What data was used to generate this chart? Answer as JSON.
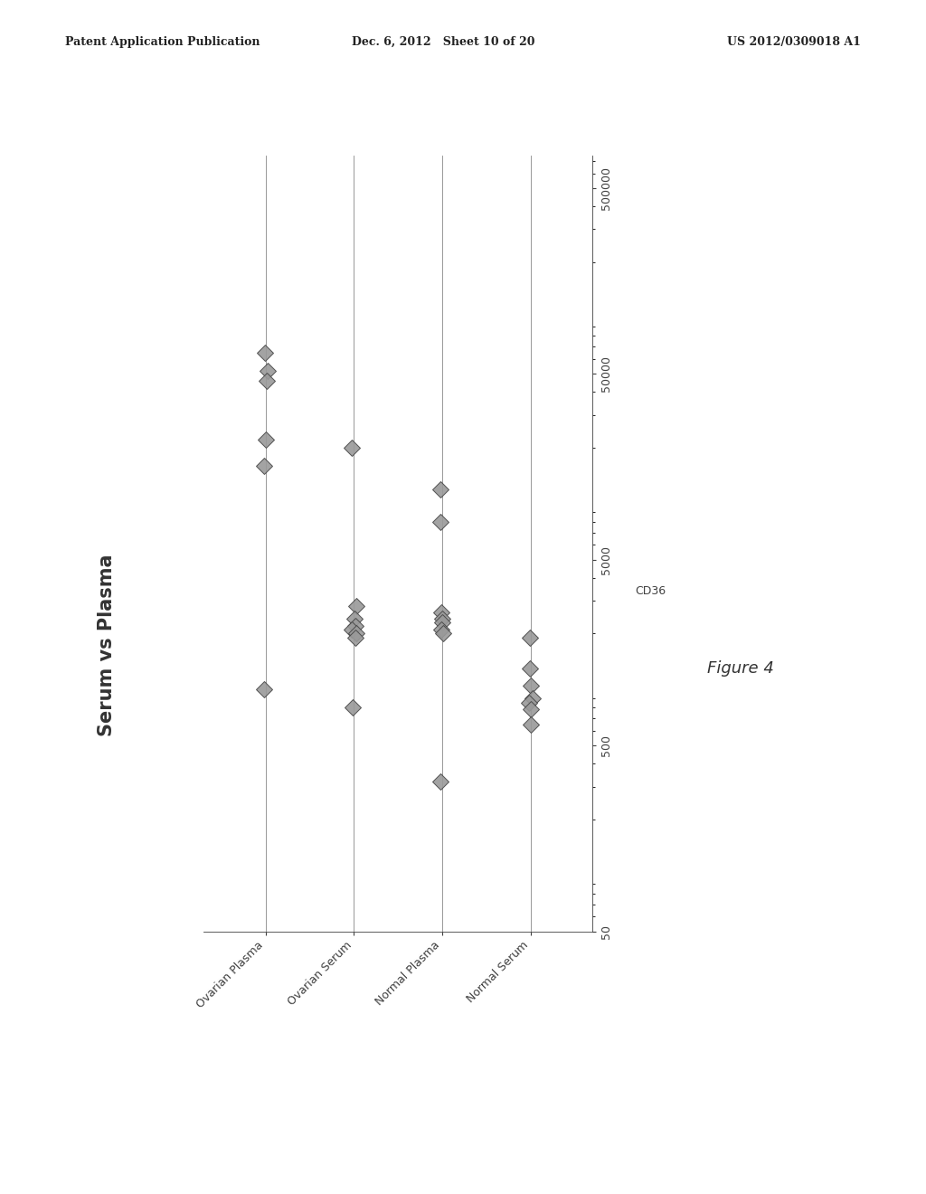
{
  "header_left": "Patent Application Publication",
  "header_mid": "Dec. 6, 2012   Sheet 10 of 20",
  "header_right": "US 2012/0309018 A1",
  "chart_title": "Serum vs Plasma",
  "figure_label": "Figure 4",
  "ylabel_cd36": "CD36",
  "ylim_log": [
    50,
    500000
  ],
  "yticks": [
    50,
    500,
    5000,
    50000,
    500000
  ],
  "ytick_labels": [
    "50",
    "500",
    "5000",
    "50000",
    "500000"
  ],
  "categories": [
    "Ovarian Plasma",
    "Ovarian Serum",
    "Normal Plasma",
    "Normal Serum"
  ],
  "data": {
    "Ovarian Plasma": [
      65000,
      52000,
      46000,
      22000,
      16000,
      1000
    ],
    "Ovarian Serum": [
      20000,
      2800,
      2400,
      2200,
      2100,
      2000,
      1900,
      800
    ],
    "Normal Plasma": [
      12000,
      8000,
      2600,
      2400,
      2300,
      2100,
      2000,
      320
    ],
    "Normal Serum": [
      1900,
      1300,
      1050,
      900,
      850,
      780,
      650
    ]
  },
  "background_color": "#f0f0f0",
  "text_color": "#404040",
  "marker_color": "#999999",
  "marker_edge_color": "#444444",
  "marker_size": 9,
  "line_color": "#888888"
}
